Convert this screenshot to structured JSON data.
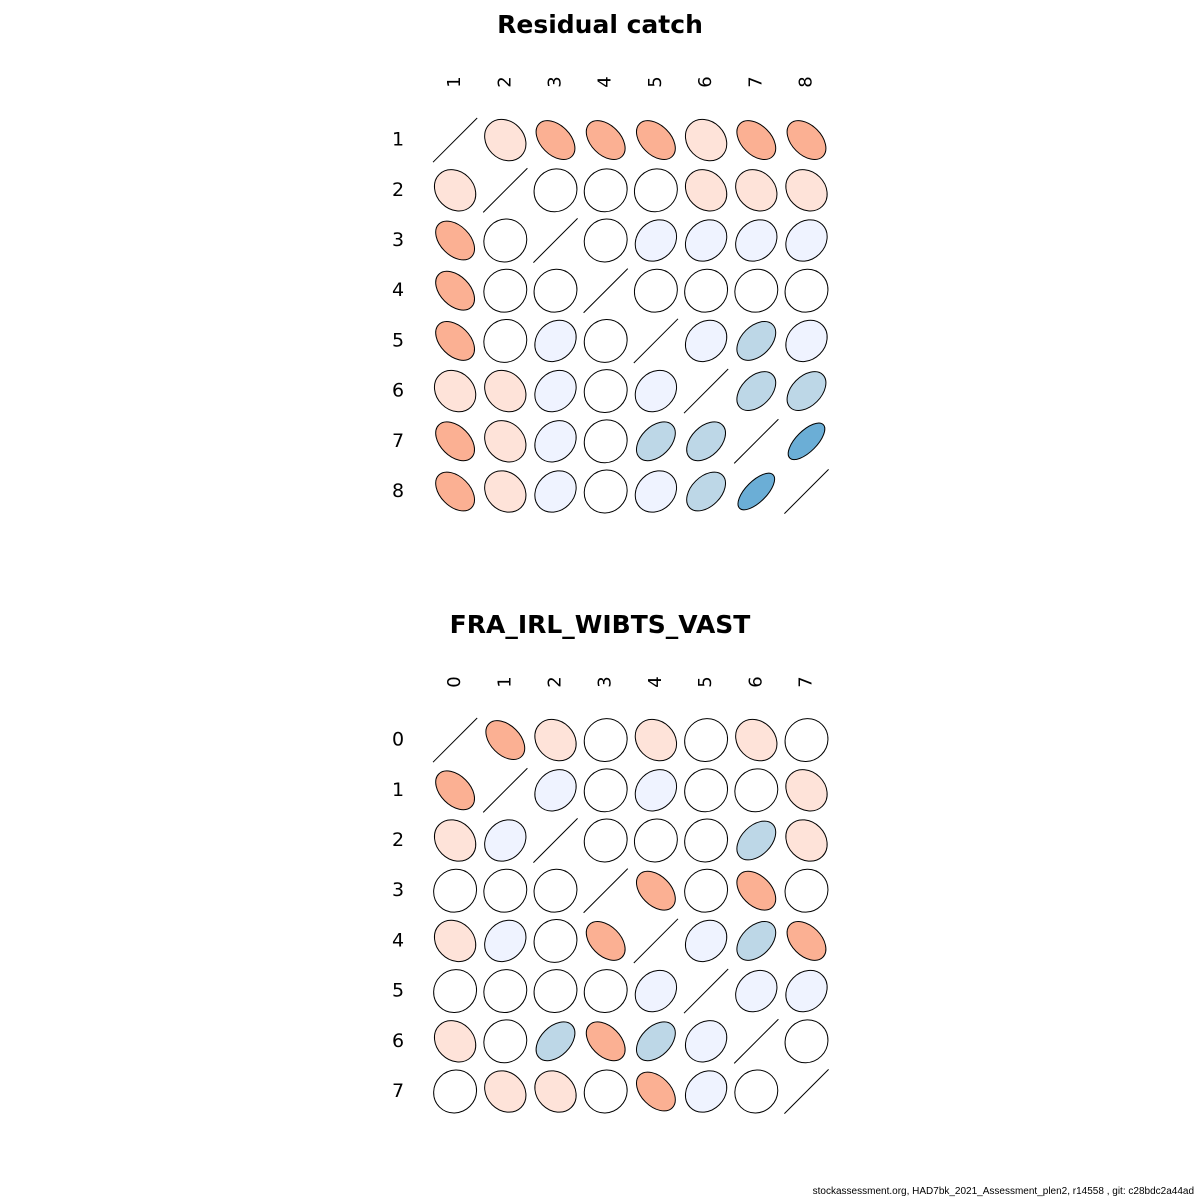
{
  "footer": "stockassessment.org, HAD7bk_2021_Assessment_plen2, r14558 , git: c28bdc2a44ad",
  "colors": {
    "neg_strong": "#FBB093",
    "neg_light": "#FEE3D9",
    "neutral": "#FFFFFF",
    "pos_light": "#EFF3FF",
    "pos_mid": "#BDD7E7",
    "pos_strong": "#6BAED6",
    "stroke": "#000000"
  },
  "chart_data": [
    {
      "type": "heatmap",
      "subtype": "correlation-ellipse-matrix",
      "title": "Residual catch",
      "labels": [
        "1",
        "2",
        "3",
        "4",
        "5",
        "6",
        "7",
        "8"
      ],
      "matrix": [
        [
          1.0,
          -0.2,
          -0.5,
          -0.5,
          -0.5,
          -0.2,
          -0.5,
          -0.5
        ],
        [
          -0.2,
          1.0,
          0.0,
          0.0,
          0.0,
          -0.2,
          -0.2,
          -0.2
        ],
        [
          -0.5,
          0.0,
          1.0,
          0.0,
          0.2,
          0.2,
          0.2,
          0.2
        ],
        [
          -0.5,
          0.0,
          0.0,
          1.0,
          0.0,
          0.0,
          0.0,
          0.0
        ],
        [
          -0.5,
          0.0,
          0.2,
          0.0,
          1.0,
          0.2,
          0.5,
          0.2
        ],
        [
          -0.2,
          -0.2,
          0.2,
          0.0,
          0.2,
          1.0,
          0.5,
          0.5
        ],
        [
          -0.5,
          -0.2,
          0.2,
          0.0,
          0.5,
          0.5,
          1.0,
          0.75
        ],
        [
          -0.5,
          -0.2,
          0.2,
          0.0,
          0.2,
          0.5,
          0.75,
          1.0
        ]
      ]
    },
    {
      "type": "heatmap",
      "subtype": "correlation-ellipse-matrix",
      "title": "FRA_IRL_WIBTS_VAST",
      "labels": [
        "0",
        "1",
        "2",
        "3",
        "4",
        "5",
        "6",
        "7"
      ],
      "matrix": [
        [
          1.0,
          -0.5,
          -0.2,
          0.0,
          -0.2,
          0.0,
          -0.2,
          0.0
        ],
        [
          -0.5,
          1.0,
          0.2,
          0.0,
          0.2,
          0.0,
          0.0,
          -0.2
        ],
        [
          -0.2,
          0.2,
          1.0,
          0.0,
          0.0,
          0.0,
          0.5,
          -0.2
        ],
        [
          0.0,
          0.0,
          0.0,
          1.0,
          -0.5,
          0.0,
          -0.5,
          0.0
        ],
        [
          -0.2,
          0.2,
          0.0,
          -0.5,
          1.0,
          0.2,
          0.5,
          -0.5
        ],
        [
          0.0,
          0.0,
          0.0,
          0.0,
          0.2,
          1.0,
          0.2,
          0.2
        ],
        [
          -0.2,
          0.0,
          0.5,
          -0.5,
          0.5,
          0.2,
          1.0,
          0.0
        ],
        [
          0.0,
          -0.2,
          -0.2,
          0.0,
          -0.5,
          0.2,
          0.0,
          1.0
        ]
      ]
    }
  ]
}
